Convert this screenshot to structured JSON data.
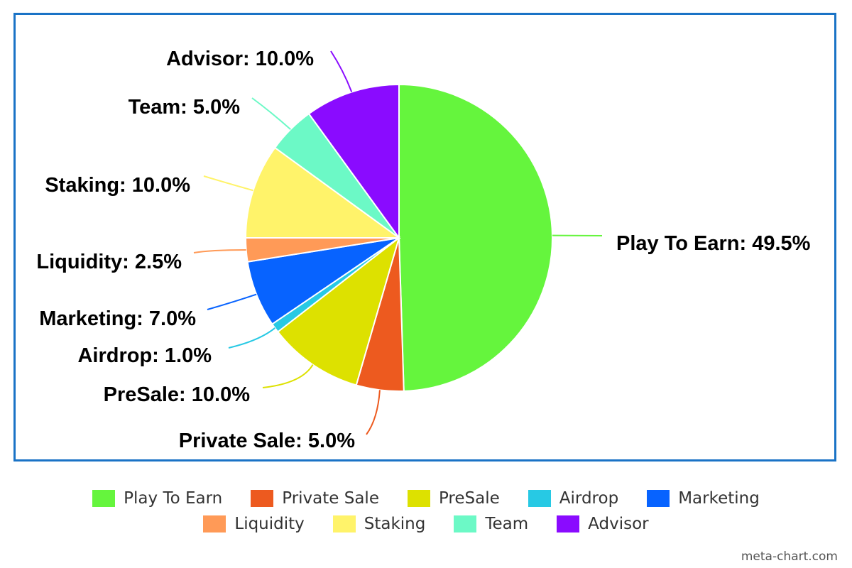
{
  "chart_data": {
    "type": "pie",
    "slices": [
      {
        "name": "Play To Earn",
        "value": 49.5,
        "label": "Play To Earn: 49.5%",
        "color": "#65f53d"
      },
      {
        "name": "Private Sale",
        "value": 5.0,
        "label": "Private Sale: 5.0%",
        "color": "#ed5a1f"
      },
      {
        "name": "PreSale",
        "value": 10.0,
        "label": "PreSale: 10.0%",
        "color": "#dde100"
      },
      {
        "name": "Airdrop",
        "value": 1.0,
        "label": "Airdrop: 1.0%",
        "color": "#27c9e4"
      },
      {
        "name": "Marketing",
        "value": 7.0,
        "label": "Marketing: 7.0%",
        "color": "#0763ff"
      },
      {
        "name": "Liquidity",
        "value": 2.5,
        "label": "Liquidity: 2.5%",
        "color": "#ff9a57"
      },
      {
        "name": "Staking",
        "value": 10.0,
        "label": "Staking: 10.0%",
        "color": "#fff36a"
      },
      {
        "name": "Team",
        "value": 5.0,
        "label": "Team: 5.0%",
        "color": "#6cf9c6"
      },
      {
        "name": "Advisor",
        "value": 10.0,
        "label": "Advisor: 10.0%",
        "color": "#8a0bff"
      }
    ],
    "legend": {
      "placement": "bottom",
      "rows": [
        [
          "Play To Earn",
          "Private Sale",
          "PreSale",
          "Airdrop",
          "Marketing"
        ],
        [
          "Liquidity",
          "Staking",
          "Team",
          "Advisor"
        ]
      ]
    }
  },
  "credit": "meta-chart.com"
}
